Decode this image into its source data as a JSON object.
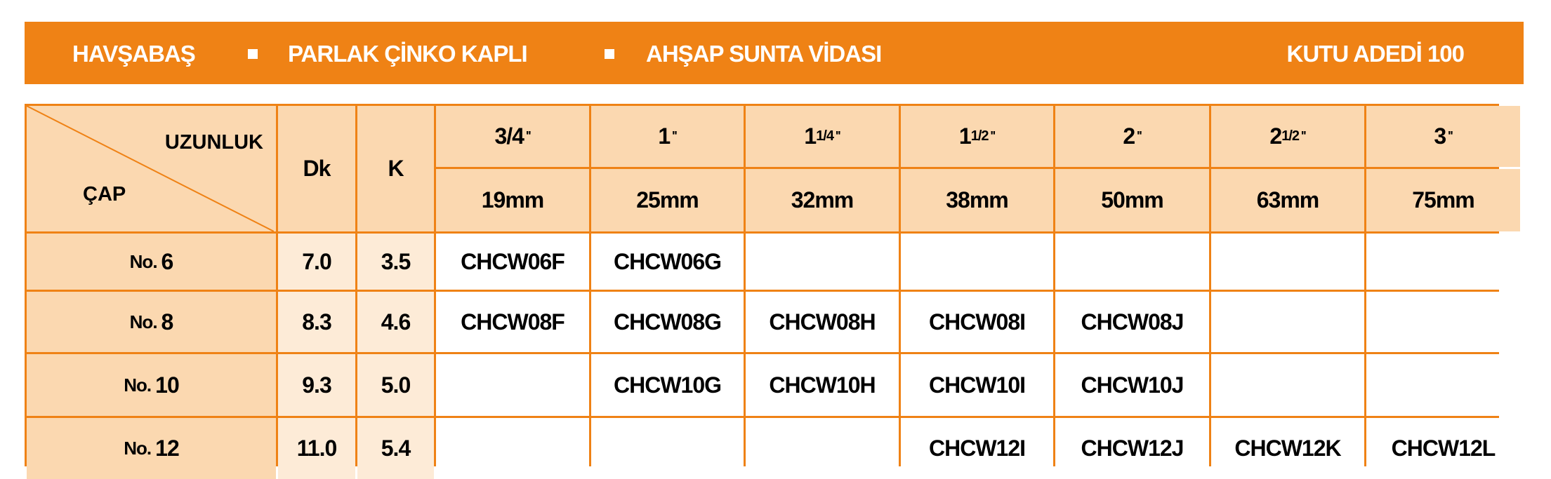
{
  "banner": {
    "items": [
      "HAVŞABAŞ",
      "PARLAK ÇİNKO KAPLI",
      "AHŞAP SUNTA VİDASI"
    ],
    "box": "KUTU ADEDİ 100",
    "separator_icon": "square-bullet-icon"
  },
  "table": {
    "corner": {
      "top": "UZUNLUK",
      "bottom": "ÇAP"
    },
    "dk": "Dk",
    "k": "K",
    "lengths": [
      {
        "whole": "3/4",
        "num": "",
        "den": "",
        "mark": "''",
        "mm": "19mm"
      },
      {
        "whole": "1",
        "num": "",
        "den": "",
        "mark": "''",
        "mm": "25mm"
      },
      {
        "whole": "1",
        "num": "1",
        "den": "/4",
        "mark": "''",
        "mm": "32mm"
      },
      {
        "whole": "1",
        "num": "1",
        "den": "/2",
        "mark": "''",
        "mm": "38mm"
      },
      {
        "whole": "2",
        "num": "",
        "den": "",
        "mark": "''",
        "mm": "50mm"
      },
      {
        "whole": "2",
        "num": "1",
        "den": "/2",
        "mark": "''",
        "mm": "63mm"
      },
      {
        "whole": "3",
        "num": "",
        "den": "",
        "mark": "''",
        "mm": "75mm"
      }
    ],
    "rows": [
      {
        "prefix": "No.",
        "size": "6",
        "dk": "7.0",
        "k": "3.5",
        "codes": [
          "CHCW06F",
          "CHCW06G",
          "",
          "",
          "",
          "",
          ""
        ]
      },
      {
        "prefix": "No.",
        "size": "8",
        "dk": "8.3",
        "k": "4.6",
        "codes": [
          "CHCW08F",
          "CHCW08G",
          "CHCW08H",
          "CHCW08I",
          "CHCW08J",
          "",
          ""
        ]
      },
      {
        "prefix": "No.",
        "size": "10",
        "dk": "9.3",
        "k": "5.0",
        "codes": [
          "",
          "CHCW10G",
          "CHCW10H",
          "CHCW10I",
          "CHCW10J",
          "",
          ""
        ]
      },
      {
        "prefix": "No.",
        "size": "12",
        "dk": "11.0",
        "k": "5.4",
        "codes": [
          "",
          "",
          "",
          "CHCW12I",
          "CHCW12J",
          "CHCW12K",
          "CHCW12L"
        ]
      }
    ]
  },
  "colors": {
    "accent": "#EF8215",
    "header_fill": "#FBD8B0",
    "light_fill": "#FDEBD7"
  }
}
